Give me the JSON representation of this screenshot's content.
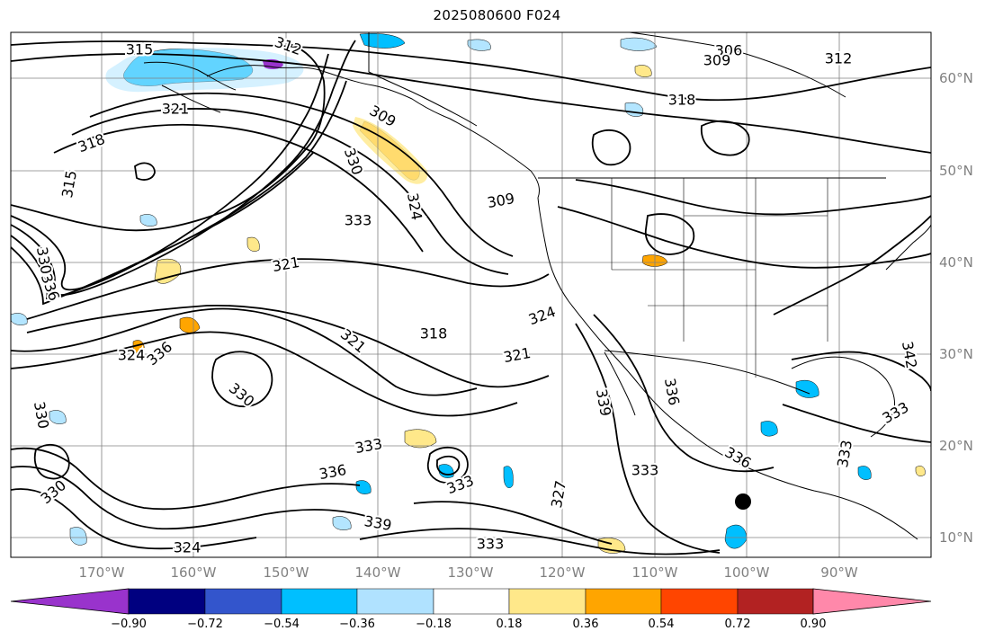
{
  "title": "2025080600 F024",
  "map": {
    "longitude_labels": [
      "170°W",
      "160°W",
      "150°W",
      "140°W",
      "130°W",
      "120°W",
      "110°W",
      "100°W",
      "90°W"
    ],
    "latitude_labels": [
      "60°N",
      "50°N",
      "40°N",
      "30°N",
      "20°N",
      "10°N"
    ],
    "contour_labels": [
      "315",
      "312",
      "306",
      "309",
      "312",
      "318",
      "321",
      "318",
      "315",
      "309",
      "330",
      "324",
      "309",
      "333",
      "330",
      "321",
      "336",
      "318",
      "324",
      "321",
      "321",
      "324",
      "336",
      "339",
      "336",
      "330",
      "330",
      "333",
      "342",
      "336",
      "333",
      "333",
      "333",
      "336",
      "333",
      "339",
      "324",
      "333",
      "327",
      "330"
    ],
    "colors": {
      "contour": "#000000",
      "grid": "#808080",
      "coast": "#000000",
      "neg_strong": "#00bfff",
      "neg_weak": "#b3e5ff",
      "pos_weak": "#ffe88a",
      "pos_strong": "#ffa500",
      "purple": "#9933cc"
    }
  },
  "colorbar": {
    "bins": [
      "#9933cc",
      "#000080",
      "#3355cc",
      "#00bfff",
      "#b0e2ff",
      "#ffffff",
      "#ffe88a",
      "#ffa500",
      "#ff4500",
      "#b22222",
      "#ff88aa"
    ],
    "tick_labels": [
      "−0.90",
      "−0.72",
      "−0.54",
      "−0.36",
      "−0.18",
      "0.18",
      "0.36",
      "0.54",
      "0.72",
      "0.90"
    ]
  }
}
